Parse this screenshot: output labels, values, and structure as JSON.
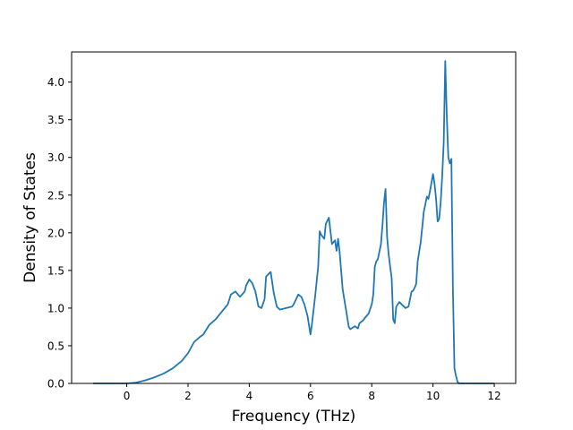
{
  "chart_data": {
    "type": "line",
    "xlabel": "Frequency (THz)",
    "ylabel": "Density of States",
    "xlim": [
      -1.8,
      12.7
    ],
    "ylim": [
      0.0,
      4.4
    ],
    "xticks": [
      0,
      2,
      4,
      6,
      8,
      10,
      12
    ],
    "yticks": [
      0.0,
      0.5,
      1.0,
      1.5,
      2.0,
      2.5,
      3.0,
      3.5,
      4.0
    ],
    "xtick_labels": [
      "0",
      "2",
      "4",
      "6",
      "8",
      "10",
      "12"
    ],
    "ytick_labels": [
      "0.0",
      "0.5",
      "1.0",
      "1.5",
      "2.0",
      "2.5",
      "3.0",
      "3.5",
      "4.0"
    ],
    "grid": false,
    "line_color": "#1f77b4",
    "series": [
      {
        "x": [
          -1.1,
          -0.5,
          0.0,
          0.3,
          0.6,
          0.9,
          1.2,
          1.5,
          1.8,
          2.0,
          2.2,
          2.4,
          2.5,
          2.7,
          2.9,
          3.1,
          3.3,
          3.4,
          3.55,
          3.7,
          3.85,
          3.9,
          4.0,
          4.1,
          4.2,
          4.3,
          4.4,
          4.5,
          4.55,
          4.7,
          4.8,
          4.9,
          5.0,
          5.2,
          5.4,
          5.45,
          5.6,
          5.7,
          5.8,
          5.9,
          6.0,
          6.05,
          6.15,
          6.25,
          6.3,
          6.35,
          6.45,
          6.5,
          6.6,
          6.7,
          6.8,
          6.85,
          6.9,
          6.95,
          7.05,
          7.15,
          7.25,
          7.3,
          7.45,
          7.55,
          7.6,
          7.7,
          7.8,
          7.9,
          8.0,
          8.05,
          8.1,
          8.15,
          8.2,
          8.3,
          8.35,
          8.4,
          8.45,
          8.5,
          8.55,
          8.6,
          8.65,
          8.7,
          8.75,
          8.8,
          8.9,
          9.0,
          9.1,
          9.2,
          9.3,
          9.35,
          9.4,
          9.45,
          9.5,
          9.6,
          9.7,
          9.8,
          9.85,
          9.9,
          10.0,
          10.05,
          10.1,
          10.15,
          10.2,
          10.25,
          10.3,
          10.35,
          10.4,
          10.45,
          10.5,
          10.55,
          10.6,
          10.65,
          10.7,
          10.75,
          10.8,
          10.85,
          10.9,
          11.0,
          12.0
        ],
        "y": [
          0.0,
          0.0,
          0.0,
          0.01,
          0.04,
          0.08,
          0.13,
          0.2,
          0.3,
          0.4,
          0.55,
          0.62,
          0.65,
          0.78,
          0.85,
          0.95,
          1.05,
          1.18,
          1.22,
          1.15,
          1.22,
          1.3,
          1.38,
          1.33,
          1.22,
          1.02,
          1.0,
          1.12,
          1.42,
          1.48,
          1.2,
          1.02,
          0.98,
          1.0,
          1.02,
          1.05,
          1.18,
          1.15,
          1.05,
          0.9,
          0.65,
          0.8,
          1.15,
          1.55,
          2.02,
          1.97,
          1.92,
          2.12,
          2.2,
          1.85,
          1.9,
          1.76,
          1.92,
          1.75,
          1.25,
          1.0,
          0.75,
          0.72,
          0.76,
          0.73,
          0.8,
          0.83,
          0.88,
          0.93,
          1.05,
          1.18,
          1.55,
          1.62,
          1.65,
          1.85,
          2.1,
          2.4,
          2.58,
          1.95,
          1.72,
          1.55,
          1.4,
          0.85,
          0.8,
          1.02,
          1.08,
          1.04,
          1.0,
          1.02,
          1.22,
          1.23,
          1.27,
          1.32,
          1.62,
          1.88,
          2.28,
          2.48,
          2.45,
          2.55,
          2.78,
          2.65,
          2.45,
          2.15,
          2.18,
          2.4,
          2.75,
          3.2,
          4.28,
          3.55,
          3.0,
          2.92,
          2.98,
          1.25,
          0.2,
          0.1,
          0.02,
          0.0,
          0.0,
          0.0,
          0.0
        ]
      }
    ]
  }
}
